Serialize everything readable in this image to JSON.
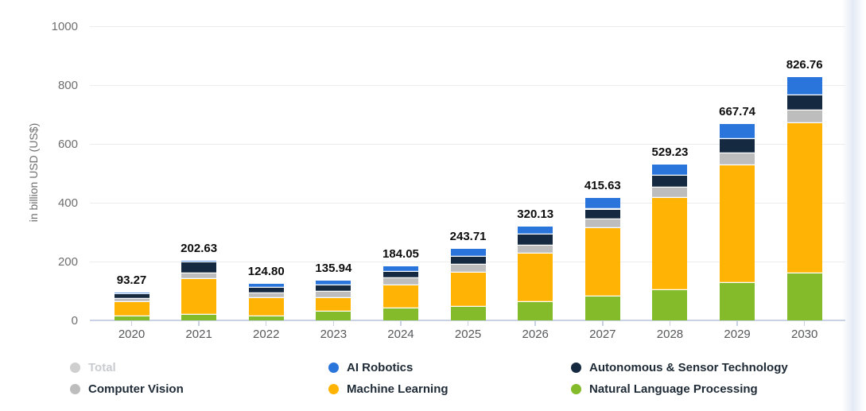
{
  "chart_data": {
    "type": "bar",
    "stacked": true,
    "title": "",
    "xlabel": "",
    "ylabel": "in billion USD (US$)",
    "ylim": [
      0,
      1000
    ],
    "yticks": [
      0,
      200,
      400,
      600,
      800,
      1000
    ],
    "ytick_labels": [
      "0",
      "200",
      "400",
      "600",
      "800",
      "1000"
    ],
    "grid": true,
    "legend_position": "bottom",
    "categories": [
      "2020",
      "2021",
      "2022",
      "2023",
      "2024",
      "2025",
      "2026",
      "2027",
      "2028",
      "2029",
      "2030"
    ],
    "series": [
      {
        "name": "Natural Language Processing",
        "color": "#84BB2B",
        "values": [
          14,
          18,
          14.5,
          30,
          40,
          46,
          62,
          81,
          103,
          128,
          159
        ]
      },
      {
        "name": "Machine Learning",
        "color": "#FFB405",
        "values": [
          48,
          123,
          61,
          46,
          79,
          115,
          166,
          233,
          314,
          400,
          510
        ]
      },
      {
        "name": "Computer Vision",
        "color": "#BDBDBD",
        "values": [
          10,
          19,
          17.5,
          20,
          23.5,
          27,
          26,
          30,
          34,
          40,
          45
        ]
      },
      {
        "name": "Autonomous & Sensor Technology",
        "color": "#152A40",
        "values": [
          17,
          36,
          18,
          24,
          23.5,
          27,
          37,
          33,
          40,
          48,
          51
        ]
      },
      {
        "name": "AI Robotics",
        "color": "#2A75DB",
        "values": [
          4.27,
          6.63,
          13.8,
          15.94,
          18.05,
          28.71,
          29.13,
          38.63,
          38.23,
          51.74,
          61.76
        ]
      }
    ],
    "totals": [
      93.27,
      202.63,
      124.8,
      135.94,
      184.05,
      243.71,
      320.13,
      415.63,
      529.23,
      667.74,
      826.76
    ],
    "total_labels": [
      "93.27",
      "202.63",
      "124.80",
      "135.94",
      "184.05",
      "243.71",
      "320.13",
      "415.63",
      "529.23",
      "667.74",
      "826.76"
    ]
  },
  "legend": {
    "columns": [
      [
        {
          "label": "Total",
          "color": "#CFCFCF",
          "disabled": true
        },
        {
          "label": "Computer Vision",
          "color": "#BDBDBD",
          "disabled": false
        }
      ],
      [
        {
          "label": "AI Robotics",
          "color": "#2A75DB",
          "disabled": false
        },
        {
          "label": "Machine Learning",
          "color": "#FFB405",
          "disabled": false
        }
      ],
      [
        {
          "label": "Autonomous & Sensor Technology",
          "color": "#152A40",
          "disabled": false
        },
        {
          "label": "Natural Language Processing",
          "color": "#84BB2B",
          "disabled": false
        }
      ]
    ]
  }
}
